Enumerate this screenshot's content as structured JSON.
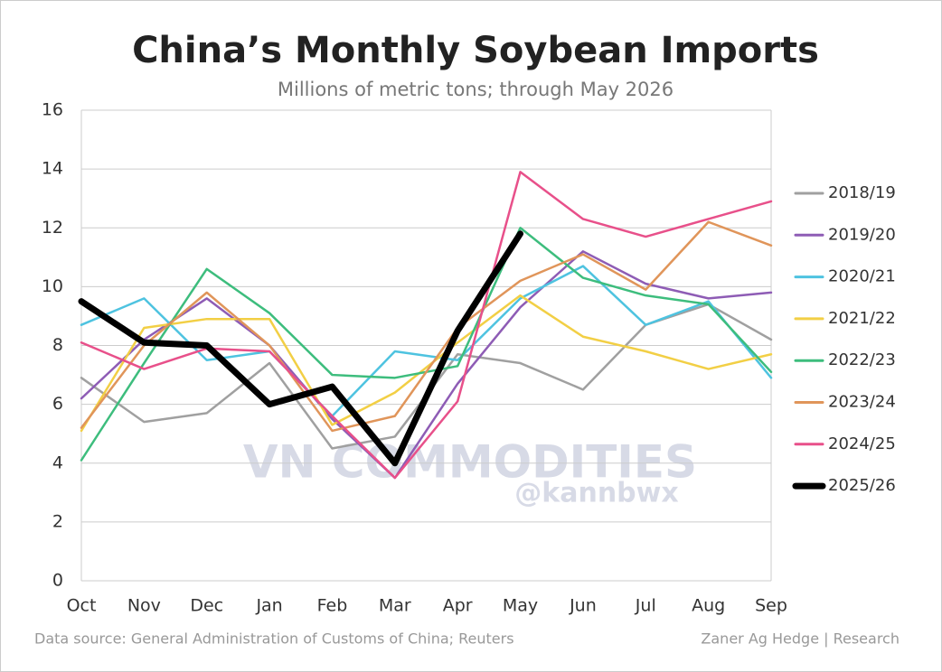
{
  "chart_data": {
    "type": "line",
    "title": "China’s Monthly Soybean Imports",
    "subtitle": "Millions of metric tons; through May 2026",
    "categories": [
      "Oct",
      "Nov",
      "Dec",
      "Jan",
      "Feb",
      "Mar",
      "Apr",
      "May",
      "Jun",
      "Jul",
      "Aug",
      "Sep"
    ],
    "series": [
      {
        "name": "2018/19",
        "color": "#a0a0a0",
        "width": 2.5,
        "values": [
          6.9,
          5.4,
          5.7,
          7.4,
          4.5,
          4.9,
          7.7,
          7.4,
          6.5,
          8.7,
          9.4,
          8.2
        ]
      },
      {
        "name": "2019/20",
        "color": "#8e5cb5",
        "width": 2.5,
        "values": [
          6.2,
          8.2,
          9.6,
          8.0,
          5.5,
          3.5,
          6.7,
          9.3,
          11.2,
          10.1,
          9.6,
          9.8
        ]
      },
      {
        "name": "2020/21",
        "color": "#4ec3e0",
        "width": 2.5,
        "values": [
          8.7,
          9.6,
          7.5,
          7.8,
          5.6,
          7.8,
          7.5,
          9.6,
          10.7,
          8.7,
          9.5,
          6.9
        ]
      },
      {
        "name": "2021/22",
        "color": "#f2cf45",
        "width": 2.5,
        "values": [
          5.1,
          8.6,
          8.9,
          8.9,
          5.3,
          6.4,
          8.1,
          9.7,
          8.3,
          7.8,
          7.2,
          7.7
        ]
      },
      {
        "name": "2022/23",
        "color": "#3dbd7d",
        "width": 2.5,
        "values": [
          4.1,
          7.4,
          10.6,
          9.1,
          7.0,
          6.9,
          7.3,
          12.0,
          10.3,
          9.7,
          9.4,
          7.1
        ]
      },
      {
        "name": "2023/24",
        "color": "#e0955a",
        "width": 2.5,
        "values": [
          5.2,
          8.0,
          9.8,
          8.0,
          5.1,
          5.6,
          8.6,
          10.2,
          11.1,
          9.9,
          12.2,
          11.4
        ]
      },
      {
        "name": "2024/25",
        "color": "#e8508a",
        "width": 2.5,
        "values": [
          8.1,
          7.2,
          7.9,
          7.8,
          5.6,
          3.5,
          6.1,
          13.9,
          12.3,
          11.7,
          12.3,
          12.9
        ]
      },
      {
        "name": "2025/26",
        "color": "#000000",
        "width": 7,
        "values": [
          9.5,
          8.1,
          8.0,
          6.0,
          6.6,
          4.0,
          8.5,
          11.8,
          null,
          null,
          null,
          null
        ]
      }
    ],
    "ylim": [
      0,
      16
    ],
    "yticks": [
      0,
      2,
      4,
      6,
      8,
      10,
      12,
      14,
      16
    ],
    "grid": true,
    "legend": "right",
    "watermark": "VN COMMODITIES",
    "watermark_handle": "@kannbwx",
    "source": "Data source: General Administration of Customs of China; Reuters",
    "credit": "Zaner Ag Hedge | Research"
  }
}
